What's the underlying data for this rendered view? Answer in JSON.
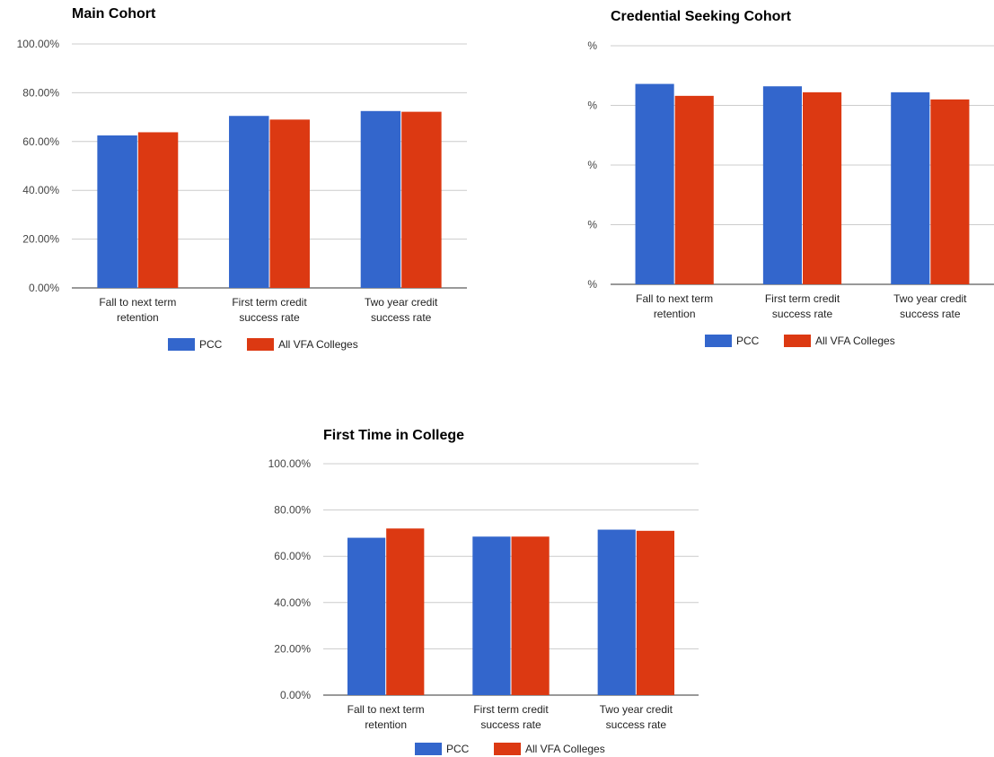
{
  "colors": {
    "pcc": "#3366cc",
    "vfa": "#dc3912",
    "grid": "#cccccc",
    "axis": "#333333"
  },
  "legend": {
    "pcc_label": "PCC",
    "vfa_label": "All VFA Colleges"
  },
  "chart_data": [
    {
      "type": "bar",
      "title": "Main Cohort",
      "categories": [
        [
          "Fall to next term",
          "retention"
        ],
        [
          "First term credit",
          "success rate"
        ],
        [
          "Two year credit",
          "success rate"
        ]
      ],
      "series": [
        {
          "name": "PCC",
          "values": [
            62.5,
            70.5,
            72.5
          ]
        },
        {
          "name": "All VFA Colleges",
          "values": [
            63.8,
            69.0,
            72.2
          ]
        }
      ],
      "ylim": [
        0,
        100
      ],
      "yticks": [
        "0.00%",
        "20.00%",
        "40.00%",
        "60.00%",
        "80.00%",
        "100.00%"
      ],
      "legend_position": "bottom",
      "grid": true
    },
    {
      "type": "bar",
      "title": "Credential Seeking Cohort",
      "categories": [
        [
          "Fall to next term",
          "retention"
        ],
        [
          "First term credit",
          "success rate"
        ],
        [
          "Two year credit",
          "success rate"
        ]
      ],
      "series": [
        {
          "name": "PCC",
          "values": [
            84,
            83,
            80.5
          ]
        },
        {
          "name": "All VFA Colleges",
          "values": [
            79,
            80.5,
            77.5
          ]
        }
      ],
      "ylim": [
        0,
        100
      ],
      "yticks": [
        "%",
        "%",
        "%",
        "%",
        "%"
      ],
      "legend_position": "bottom",
      "grid": true
    },
    {
      "type": "bar",
      "title": "First Time in College",
      "categories": [
        [
          "Fall to next term",
          "retention"
        ],
        [
          "First term credit",
          "success rate"
        ],
        [
          "Two year credit",
          "success rate"
        ]
      ],
      "series": [
        {
          "name": "PCC",
          "values": [
            68.0,
            68.5,
            71.5
          ]
        },
        {
          "name": "All VFA Colleges",
          "values": [
            72.0,
            68.5,
            71.0
          ]
        }
      ],
      "ylim": [
        0,
        100
      ],
      "yticks": [
        "0.00%",
        "20.00%",
        "40.00%",
        "60.00%",
        "80.00%",
        "100.00%"
      ],
      "legend_position": "bottom",
      "grid": true
    }
  ]
}
